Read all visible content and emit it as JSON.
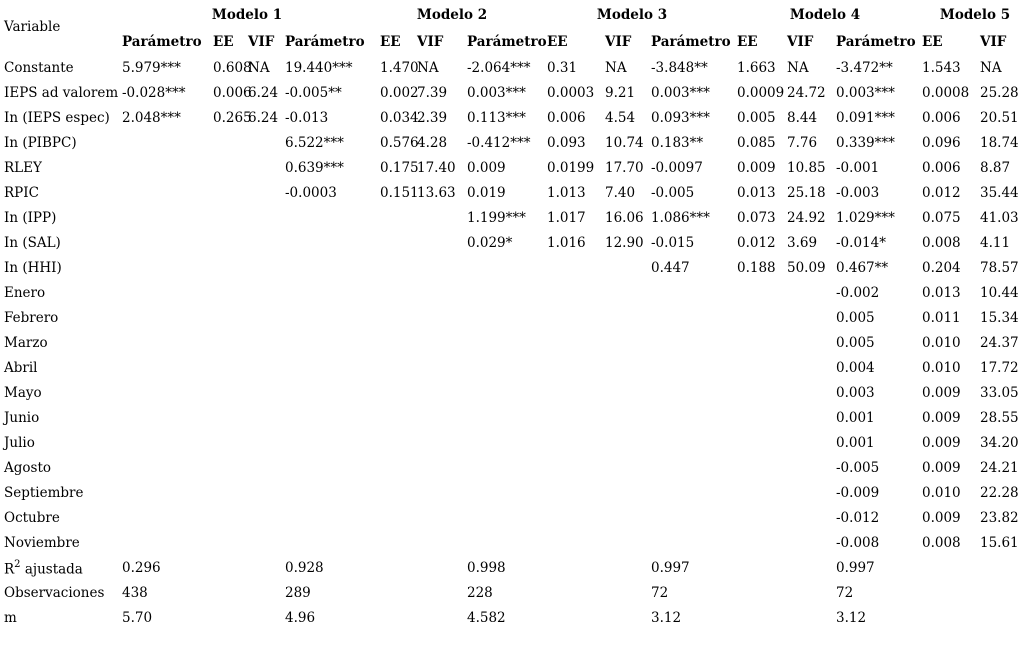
{
  "table": {
    "variable_header": "Variable",
    "models": [
      "Modelo 1",
      "Modelo 2",
      "Modelo 3",
      "Modelo 4",
      "Modelo 5"
    ],
    "subheaders": {
      "parameter": "Parámetro",
      "ee": "EE",
      "vif": "VIF"
    },
    "rows": [
      {
        "variable": "Constante",
        "cells": [
          "5.979***",
          "0.608",
          "NA",
          "19.440***",
          "1.470",
          "NA",
          "-2.064***",
          "0.31",
          "NA",
          "-3.848**",
          "1.663",
          "NA",
          "-3.472**",
          "1.543",
          "NA"
        ]
      },
      {
        "variable": "IEPS ad valorem",
        "cells": [
          "-0.028***",
          "0.006",
          "6.24",
          "-0.005**",
          "0.002",
          "7.39",
          "0.003***",
          "0.0003",
          "9.21",
          "0.003***",
          "0.0009",
          "24.72",
          "0.003***",
          "0.0008",
          "25.28"
        ]
      },
      {
        "variable": "In (IEPS espec)",
        "cells": [
          "2.048***",
          "0.265",
          "6.24",
          "-0.013",
          "0.034",
          "2.39",
          "0.113***",
          "0.006",
          "4.54",
          "0.093***",
          "0.005",
          "8.44",
          "0.091***",
          "0.006",
          "20.51"
        ]
      },
      {
        "variable": "In (PIBPC)",
        "cells": [
          "",
          "",
          "",
          "6.522***",
          "0.576",
          "4.28",
          "-0.412***",
          "0.093",
          "10.74",
          "0.183**",
          "0.085",
          "7.76",
          "0.339***",
          "0.096",
          "18.74"
        ]
      },
      {
        "variable": "RLEY",
        "cells": [
          "",
          "",
          "",
          "0.639***",
          "0.175",
          "17.40",
          "0.009",
          "0.0199",
          "17.70",
          "-0.0097",
          "0.009",
          "10.85",
          "-0.001",
          "0.006",
          "8.87"
        ]
      },
      {
        "variable": "RPIC",
        "cells": [
          "",
          "",
          "",
          "-0.0003",
          "0.151",
          "13.63",
          "0.019",
          "1.013",
          "7.40",
          "-0.005",
          "0.013",
          "25.18",
          "-0.003",
          "0.012",
          "35.44"
        ]
      },
      {
        "variable": "In (IPP)",
        "cells": [
          "",
          "",
          "",
          "",
          "",
          "",
          "1.199***",
          "1.017",
          "16.06",
          "1.086***",
          "0.073",
          "24.92",
          "1.029***",
          "0.075",
          "41.03"
        ]
      },
      {
        "variable": "In (SAL)",
        "cells": [
          "",
          "",
          "",
          "",
          "",
          "",
          "0.029*",
          "1.016",
          "12.90",
          "-0.015",
          "0.012",
          "3.69",
          "-0.014*",
          "0.008",
          "4.11"
        ]
      },
      {
        "variable": "In (HHI)",
        "cells": [
          "",
          "",
          "",
          "",
          "",
          "",
          "",
          "",
          "",
          "0.447",
          "0.188",
          "50.09",
          "0.467**",
          "0.204",
          "78.57"
        ]
      },
      {
        "variable": "Enero",
        "cells": [
          "",
          "",
          "",
          "",
          "",
          "",
          "",
          "",
          "",
          "",
          "",
          "",
          "-0.002",
          "0.013",
          "10.44"
        ]
      },
      {
        "variable": "Febrero",
        "cells": [
          "",
          "",
          "",
          "",
          "",
          "",
          "",
          "",
          "",
          "",
          "",
          "",
          "0.005",
          "0.011",
          "15.34"
        ]
      },
      {
        "variable": "Marzo",
        "cells": [
          "",
          "",
          "",
          "",
          "",
          "",
          "",
          "",
          "",
          "",
          "",
          "",
          "0.005",
          "0.010",
          "24.37"
        ]
      },
      {
        "variable": "Abril",
        "cells": [
          "",
          "",
          "",
          "",
          "",
          "",
          "",
          "",
          "",
          "",
          "",
          "",
          "0.004",
          "0.010",
          "17.72"
        ]
      },
      {
        "variable": "Mayo",
        "cells": [
          "",
          "",
          "",
          "",
          "",
          "",
          "",
          "",
          "",
          "",
          "",
          "",
          "0.003",
          "0.009",
          "33.05"
        ]
      },
      {
        "variable": "Junio",
        "cells": [
          "",
          "",
          "",
          "",
          "",
          "",
          "",
          "",
          "",
          "",
          "",
          "",
          "0.001",
          "0.009",
          "28.55"
        ]
      },
      {
        "variable": "Julio",
        "cells": [
          "",
          "",
          "",
          "",
          "",
          "",
          "",
          "",
          "",
          "",
          "",
          "",
          "0.001",
          "0.009",
          "34.20"
        ]
      },
      {
        "variable": "Agosto",
        "cells": [
          "",
          "",
          "",
          "",
          "",
          "",
          "",
          "",
          "",
          "",
          "",
          "",
          "-0.005",
          "0.009",
          "24.21"
        ]
      },
      {
        "variable": "Septiembre",
        "cells": [
          "",
          "",
          "",
          "",
          "",
          "",
          "",
          "",
          "",
          "",
          "",
          "",
          "-0.009",
          "0.010",
          "22.28"
        ]
      },
      {
        "variable": "Octubre",
        "cells": [
          "",
          "",
          "",
          "",
          "",
          "",
          "",
          "",
          "",
          "",
          "",
          "",
          "-0.012",
          "0.009",
          "23.82"
        ]
      },
      {
        "variable": "Noviembre",
        "cells": [
          "",
          "",
          "",
          "",
          "",
          "",
          "",
          "",
          "",
          "",
          "",
          "",
          "-0.008",
          "0.008",
          "15.61"
        ]
      }
    ],
    "summary_rows": [
      {
        "variable": "R² ajustada",
        "values": [
          "0.296",
          "0.928",
          "0.998",
          "0.997",
          "0.997"
        ]
      },
      {
        "variable": "Observaciones",
        "values": [
          "438",
          "289",
          "228",
          "72",
          "72"
        ]
      },
      {
        "variable": "m",
        "values": [
          "5.70",
          "4.96",
          "4.582",
          "3.12",
          "3.12"
        ]
      }
    ]
  }
}
